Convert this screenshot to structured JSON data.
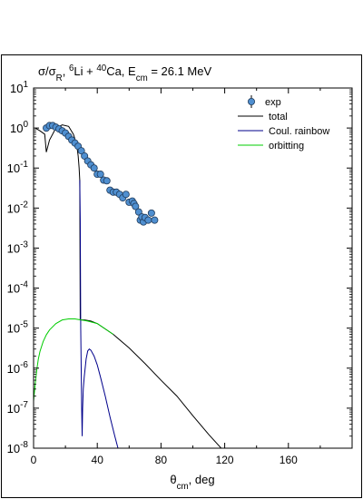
{
  "chart_data": {
    "type": "scatter",
    "title": {
      "parts": [
        {
          "t": "σ/σ"
        },
        {
          "t": "R",
          "sub": true
        },
        {
          "t": ", "
        },
        {
          "t": "6",
          "sup": true
        },
        {
          "t": "Li + "
        },
        {
          "t": "40",
          "sup": true
        },
        {
          "t": "Ca, E"
        },
        {
          "t": "cm",
          "sub": true
        },
        {
          "t": " = 26.1 MeV"
        }
      ]
    },
    "xlabel": {
      "parts": [
        {
          "t": "θ"
        },
        {
          "t": "cm",
          "sub": true
        },
        {
          "t": ", deg"
        }
      ]
    },
    "ylabel": "",
    "xlim": [
      0,
      200
    ],
    "ylim_log10": [
      -8,
      1
    ],
    "log_y": true,
    "grid": false,
    "legend_position": "top-right",
    "x_ticks": [
      0,
      40,
      80,
      120,
      160
    ],
    "x_tick_labels": [
      "0",
      "40",
      "80",
      "120",
      "160"
    ],
    "y_ticks_exp": [
      1,
      0,
      -1,
      -2,
      -3,
      -4,
      -5,
      -6,
      -7,
      -8
    ],
    "y_tick_base": "10",
    "y_tick_labels": [
      "1",
      "0",
      "-1",
      "-2",
      "-3",
      "-4",
      "-5",
      "-6",
      "-7",
      "-8"
    ],
    "legend": [
      {
        "label": "exp",
        "kind": "marker",
        "color": "#4f8fd0"
      },
      {
        "label": "total",
        "kind": "line",
        "color": "#000000"
      },
      {
        "label": "Coul. rainbow",
        "kind": "line",
        "color": "#00008b"
      },
      {
        "label": "orbitting",
        "kind": "line",
        "color": "#00cc00"
      }
    ],
    "series": [
      {
        "name": "exp",
        "kind": "scatter",
        "color": "#4f8fd0",
        "x": [
          8,
          10,
          12,
          14,
          16,
          18,
          20,
          22,
          24,
          26,
          28,
          30,
          32,
          34,
          36,
          38,
          40,
          42,
          44,
          46,
          48,
          50,
          52,
          54,
          56,
          58,
          60,
          62,
          63,
          64,
          66,
          67,
          68,
          69,
          70,
          72,
          74,
          76
        ],
        "y": [
          1.0,
          1.15,
          1.15,
          1.05,
          0.95,
          0.85,
          0.75,
          0.62,
          0.5,
          0.42,
          0.35,
          0.27,
          0.2,
          0.15,
          0.12,
          0.1,
          0.07,
          0.07,
          0.05,
          0.048,
          0.028,
          0.025,
          0.025,
          0.022,
          0.018,
          0.022,
          0.014,
          0.015,
          0.013,
          0.011,
          0.008,
          0.005,
          0.006,
          0.0045,
          0.0058,
          0.005,
          0.0075,
          0.005
        ]
      },
      {
        "name": "total",
        "kind": "line",
        "color": "#000000",
        "x": [
          1,
          4,
          7,
          8,
          10,
          14,
          18,
          22,
          25,
          27,
          28,
          28.6,
          29,
          29.3,
          30,
          32,
          36,
          40,
          50,
          60,
          70,
          80,
          90,
          100,
          110,
          120,
          130
        ],
        "y": [
          1.0,
          0.85,
          0.7,
          0.25,
          0.5,
          1.0,
          1.2,
          1.1,
          0.7,
          0.4,
          0.2,
          0.1,
          0.05,
          1.6e-05,
          1.6e-05,
          1.6e-05,
          1.5e-05,
          1.3e-05,
          7e-06,
          3.2e-06,
          1.3e-06,
          5e-07,
          2e-07,
          6.5e-08,
          2.2e-08,
          8e-09,
          2.8e-09
        ]
      },
      {
        "name": "Coul. rainbow",
        "kind": "line",
        "color": "#00008b",
        "x": [
          29.0,
          29.3,
          29.6,
          29.9,
          30.2,
          30.5,
          30.8,
          31.2,
          31.8,
          32.5,
          33,
          34,
          35,
          36,
          38,
          40,
          42,
          45,
          48,
          51,
          53,
          55
        ],
        "y": [
          0.05,
          0.005,
          1e-05,
          1e-06,
          1e-07,
          2e-08,
          1e-07,
          3e-07,
          6e-07,
          1.1e-06,
          1.7e-06,
          2.7e-06,
          3e-06,
          2.8e-06,
          2e-06,
          1.2e-06,
          6e-07,
          2e-07,
          6e-08,
          2e-08,
          1e-08,
          4e-09
        ]
      },
      {
        "name": "orbitting",
        "kind": "line",
        "color": "#00cc00",
        "x": [
          0,
          1,
          2,
          3,
          4,
          6,
          8,
          10,
          14,
          18,
          22,
          26,
          28,
          30,
          34,
          40,
          50
        ],
        "y": [
          1.5e-07,
          4e-07,
          9e-07,
          1.7e-06,
          2.6e-06,
          4.6e-06,
          6.8e-06,
          9e-06,
          1.3e-05,
          1.6e-05,
          1.7e-05,
          1.7e-05,
          1.65e-05,
          1.6e-05,
          1.5e-05,
          1.3e-05,
          7e-06
        ]
      }
    ]
  }
}
